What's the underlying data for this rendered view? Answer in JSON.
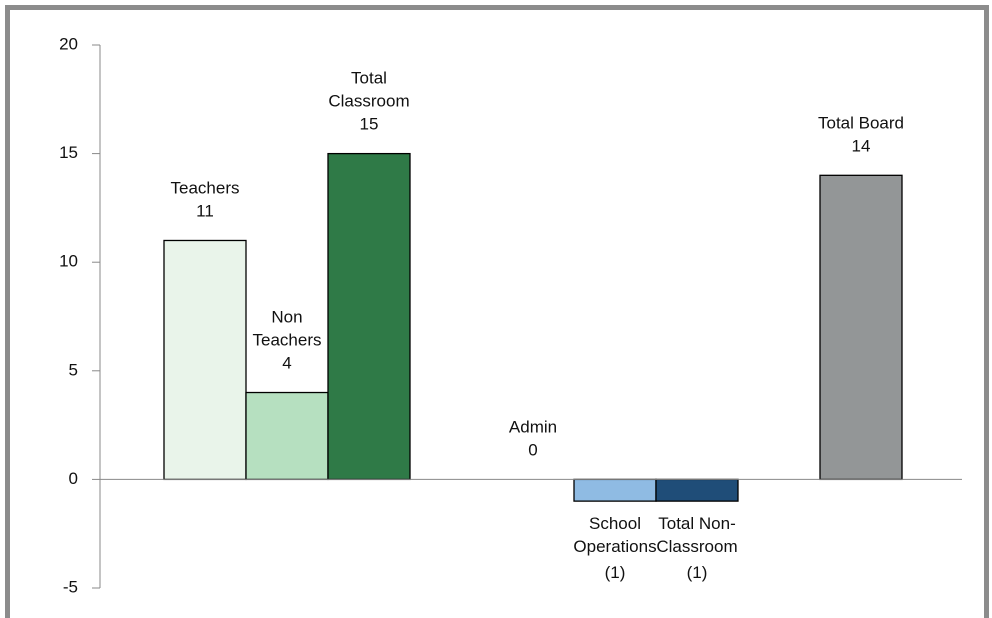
{
  "chart_data": {
    "type": "bar",
    "categories": [
      [
        "Teachers"
      ],
      [
        "Non",
        "Teachers"
      ],
      [
        "Total",
        "Classroom"
      ],
      [
        "Admin"
      ],
      [
        "School",
        "Operations"
      ],
      [
        "Total Non-",
        "Classroom"
      ],
      [
        "Total Board"
      ]
    ],
    "values": [
      11,
      4,
      15,
      0,
      -1,
      -1,
      14
    ],
    "value_labels": [
      "11",
      "4",
      "15",
      "0",
      "(1)",
      "(1)",
      "14"
    ],
    "colors": [
      "#e9f4ea",
      "#b6e0c0",
      "#2f7a47",
      "#ffffff",
      "#8fbbe3",
      "#1f4d78",
      "#939697"
    ],
    "ylim": [
      -5,
      20
    ],
    "yticks": [
      -5,
      0,
      5,
      10,
      15,
      20
    ]
  }
}
